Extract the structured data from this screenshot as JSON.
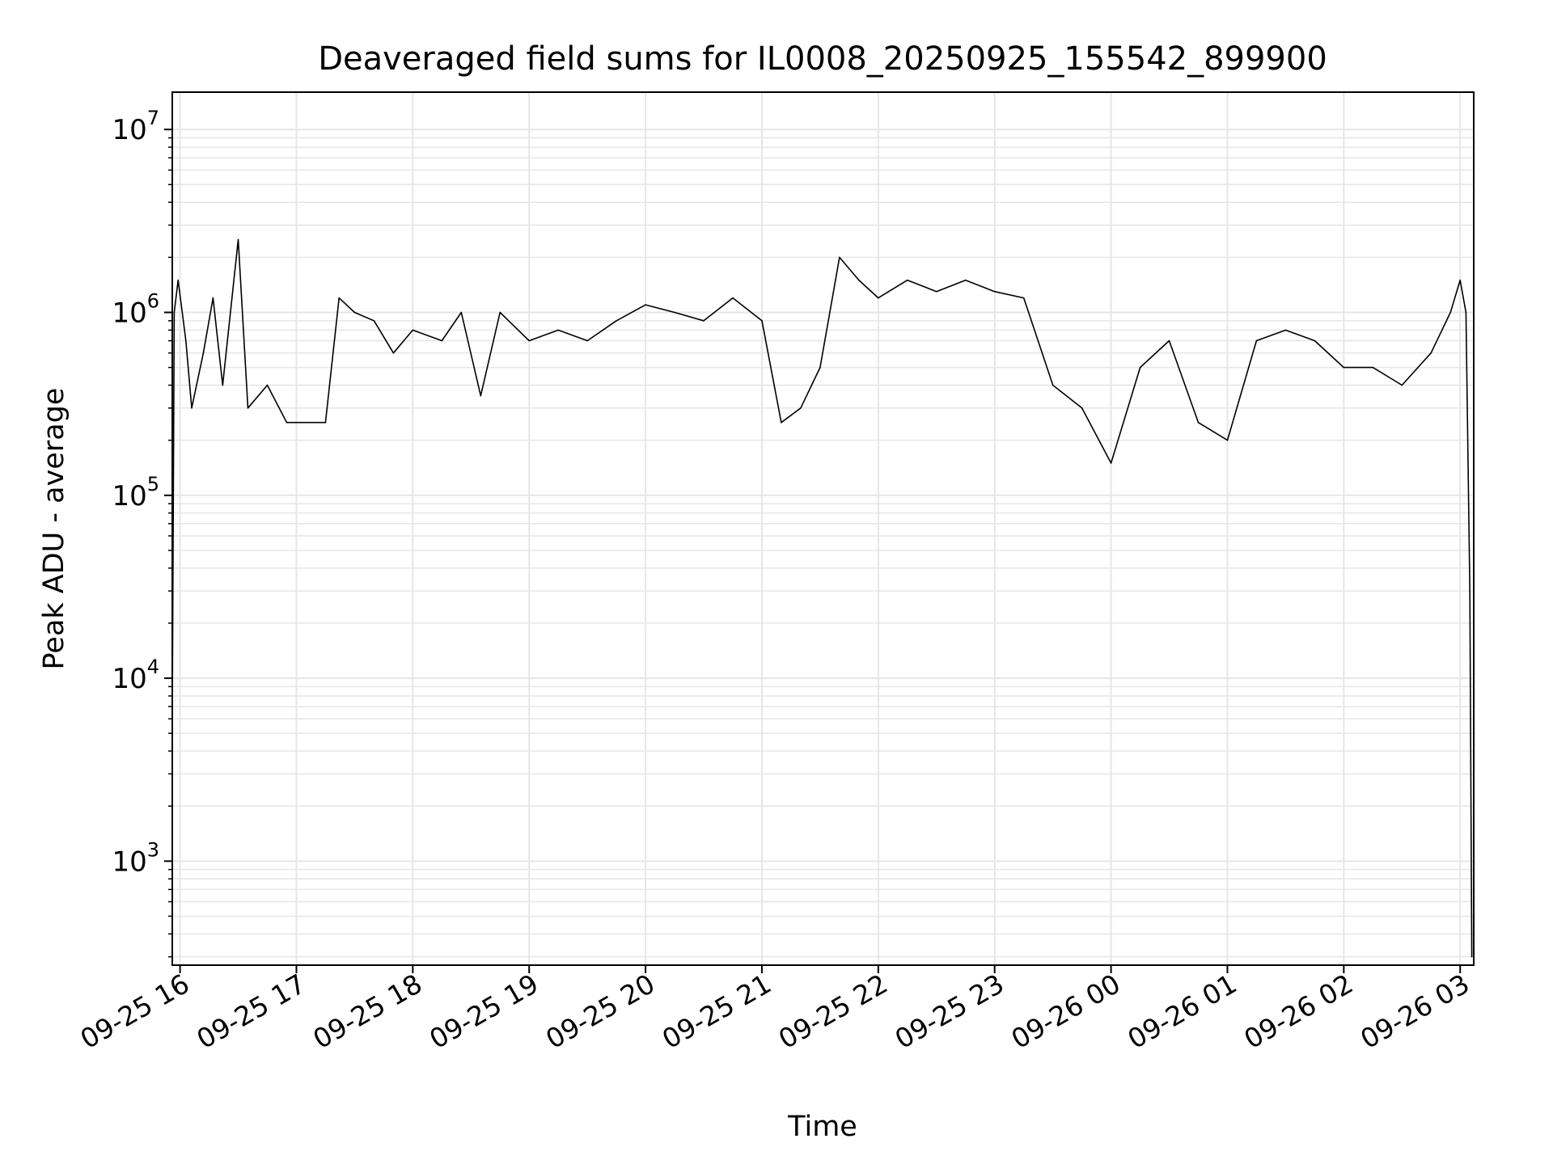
{
  "chart_data": {
    "type": "line",
    "title": "Deaveraged field sums for IL0008_20250925_155542_899900",
    "xlabel": "Time",
    "ylabel": "Peak ADU - average",
    "y_scale": "log",
    "ylim": [
      270,
      16000000
    ],
    "xlim": [
      "2025-09-25T15:56",
      "2025-09-26T03:07"
    ],
    "grid": true,
    "line_color": "#000000",
    "grid_color": "#e6e6e6",
    "x_ticks": [
      {
        "t": "2025-09-25T16:00",
        "label": "09-25 16"
      },
      {
        "t": "2025-09-25T17:00",
        "label": "09-25 17"
      },
      {
        "t": "2025-09-25T18:00",
        "label": "09-25 18"
      },
      {
        "t": "2025-09-25T19:00",
        "label": "09-25 19"
      },
      {
        "t": "2025-09-25T20:00",
        "label": "09-25 20"
      },
      {
        "t": "2025-09-25T21:00",
        "label": "09-25 21"
      },
      {
        "t": "2025-09-25T22:00",
        "label": "09-25 22"
      },
      {
        "t": "2025-09-25T23:00",
        "label": "09-25 23"
      },
      {
        "t": "2025-09-26T00:00",
        "label": "09-26 00"
      },
      {
        "t": "2025-09-26T01:00",
        "label": "09-26 01"
      },
      {
        "t": "2025-09-26T02:00",
        "label": "09-26 02"
      },
      {
        "t": "2025-09-26T03:00",
        "label": "09-26 03"
      }
    ],
    "y_ticks": [
      {
        "value": 1000,
        "base": "10",
        "exp": "3"
      },
      {
        "value": 10000,
        "base": "10",
        "exp": "4"
      },
      {
        "value": 100000,
        "base": "10",
        "exp": "5"
      },
      {
        "value": 1000000,
        "base": "10",
        "exp": "6"
      },
      {
        "value": 10000000,
        "base": "10",
        "exp": "7"
      }
    ],
    "series": [
      {
        "x": [
          "2025-09-25T15:56",
          "2025-09-25T15:57",
          "2025-09-25T15:59",
          "2025-09-25T16:03",
          "2025-09-25T16:06",
          "2025-09-25T16:12",
          "2025-09-25T16:17",
          "2025-09-25T16:22",
          "2025-09-25T16:30",
          "2025-09-25T16:35",
          "2025-09-25T16:45",
          "2025-09-25T16:55",
          "2025-09-25T17:05",
          "2025-09-25T17:15",
          "2025-09-25T17:22",
          "2025-09-25T17:30",
          "2025-09-25T17:40",
          "2025-09-25T17:50",
          "2025-09-25T18:00",
          "2025-09-25T18:15",
          "2025-09-25T18:25",
          "2025-09-25T18:35",
          "2025-09-25T18:45",
          "2025-09-25T19:00",
          "2025-09-25T19:15",
          "2025-09-25T19:30",
          "2025-09-25T19:45",
          "2025-09-25T20:00",
          "2025-09-25T20:15",
          "2025-09-25T20:30",
          "2025-09-25T20:45",
          "2025-09-25T21:00",
          "2025-09-25T21:10",
          "2025-09-25T21:20",
          "2025-09-25T21:30",
          "2025-09-25T21:40",
          "2025-09-25T21:50",
          "2025-09-25T22:00",
          "2025-09-25T22:15",
          "2025-09-25T22:30",
          "2025-09-25T22:45",
          "2025-09-25T23:00",
          "2025-09-25T23:15",
          "2025-09-25T23:30",
          "2025-09-25T23:45",
          "2025-09-26T00:00",
          "2025-09-26T00:15",
          "2025-09-26T00:30",
          "2025-09-26T00:45",
          "2025-09-26T01:00",
          "2025-09-26T01:15",
          "2025-09-26T01:30",
          "2025-09-26T01:45",
          "2025-09-26T02:00",
          "2025-09-26T02:15",
          "2025-09-26T02:30",
          "2025-09-26T02:45",
          "2025-09-26T02:55",
          "2025-09-26T03:00",
          "2025-09-26T03:03",
          "2025-09-26T03:05",
          "2025-09-26T03:06"
        ],
        "y": [
          6000,
          1000000,
          1500000,
          700000,
          300000,
          600000,
          1200000,
          400000,
          2500000,
          300000,
          400000,
          250000,
          250000,
          250000,
          1200000,
          1000000,
          900000,
          600000,
          800000,
          700000,
          1000000,
          350000,
          1000000,
          700000,
          800000,
          700000,
          900000,
          1100000,
          1000000,
          900000,
          1200000,
          900000,
          250000,
          300000,
          500000,
          2000000,
          1500000,
          1200000,
          1500000,
          1300000,
          1500000,
          1300000,
          1200000,
          400000,
          300000,
          150000,
          500000,
          700000,
          250000,
          200000,
          700000,
          800000,
          700000,
          500000,
          500000,
          400000,
          600000,
          1000000,
          1500000,
          1000000,
          30000,
          300
        ]
      }
    ]
  }
}
